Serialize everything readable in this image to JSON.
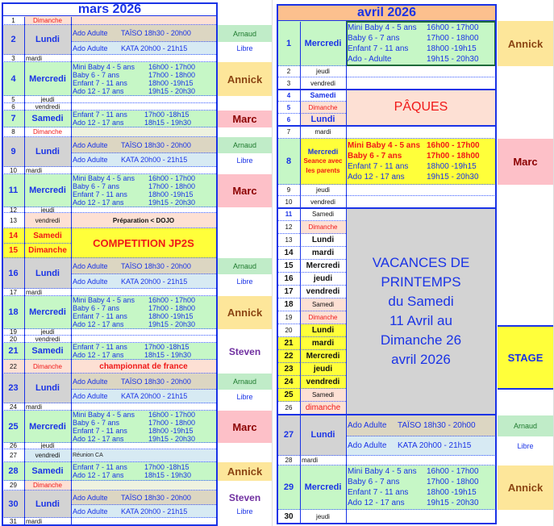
{
  "colors": {
    "schedule_text": "#1a33e6",
    "sunday": "#f01818",
    "lundi_bg": "#d3d3d3",
    "taiso_bg": "#dcd6c2",
    "kata_bg": "#d7eaf3",
    "session_bg": "#c6f7c6",
    "holiday_bg": "#fde0d4",
    "highlight": "#ffff3a",
    "avril_header": "#fcc08e"
  },
  "mars": {
    "title": "mars 2026",
    "rows": [
      {
        "num": "1",
        "day": "Dimanche"
      },
      {
        "num": "2",
        "day": "Lundi",
        "lines": [
          [
            "Ado Adulte",
            "TAÏSO 18h30 - 20h00"
          ],
          [
            "Ado Adulte",
            "KATA  20h00 - 21h15"
          ]
        ]
      },
      {
        "num": "3",
        "day": "mardi"
      },
      {
        "num": "4",
        "day": "Mercredi",
        "lines": [
          [
            "Mini Baby 4 - 5 ans",
            "16h00 - 17h00"
          ],
          [
            "Baby     6 - 7 ans",
            "17h00 - 18h00"
          ],
          [
            "Enfant  7 - 11 ans",
            "18h00 -19h15"
          ],
          [
            "Ado  12  -  17 ans",
            "19h15 - 20h30"
          ]
        ]
      },
      {
        "num": "5",
        "day": "jeudi"
      },
      {
        "num": "6",
        "day": "vendredi"
      },
      {
        "num": "7",
        "day": "Samedi",
        "lines": [
          [
            "Enfant 7 - 11 ans",
            "17h00 -18h15"
          ],
          [
            "Ado  12 - 17 ans",
            "18h15 - 19h30"
          ]
        ]
      },
      {
        "num": "8",
        "day": "Dimanche"
      },
      {
        "num": "9",
        "day": "Lundi",
        "lines": [
          [
            "Ado Adulte",
            "TAÏSO 18h30 - 20h00"
          ],
          [
            "Ado Adulte",
            "KATA  20h00 - 21h15"
          ]
        ]
      },
      {
        "num": "10",
        "day": "mardi"
      },
      {
        "num": "11",
        "day": "Mercredi",
        "lines": [
          [
            "Mini Baby 4 - 5 ans",
            "16h00 - 17h00"
          ],
          [
            "Baby     6 - 7 ans",
            "17h00 - 18h00"
          ],
          [
            "Enfant  7 - 11 ans",
            "18h00 -19h15"
          ],
          [
            "Ado  12  -  17 ans",
            "19h15 - 20h30"
          ]
        ]
      },
      {
        "num": "12",
        "day": "jeudi"
      },
      {
        "num": "13",
        "day": "vendredi",
        "note": "Préparation < DOJO"
      },
      {
        "num": "14",
        "day": "Samedi",
        "note": "COMPETITION JP2S"
      },
      {
        "num": "15",
        "day": "Dimanche"
      },
      {
        "num": "16",
        "day": "Lundi",
        "lines": [
          [
            "Ado Adulte",
            "TAÏSO 18h30 - 20h00"
          ],
          [
            "Ado Adulte",
            "KATA  20h00 - 21h15"
          ]
        ]
      },
      {
        "num": "17",
        "day": "mardi"
      },
      {
        "num": "18",
        "day": "Mercredi",
        "lines": [
          [
            "Mini Baby 4 - 5 ans",
            "16h00 - 17h00"
          ],
          [
            "Baby     6 - 7 ans",
            "17h00 - 18h00"
          ],
          [
            "Enfant  7 - 11 ans",
            "18h00 -19h15"
          ],
          [
            "Ado  12  -  17 ans",
            "19h15 - 20h30"
          ]
        ]
      },
      {
        "num": "19",
        "day": "jeudi"
      },
      {
        "num": "20",
        "day": "vendredi"
      },
      {
        "num": "21",
        "day": "Samedi",
        "lines": [
          [
            "Enfant 7 - 11 ans",
            "17h00 -18h15"
          ],
          [
            "Ado  12 - 17 ans",
            "18h15 - 19h30"
          ]
        ]
      },
      {
        "num": "22",
        "day": "Dimanche",
        "note": "championnat de france"
      },
      {
        "num": "23",
        "day": "Lundi",
        "lines": [
          [
            "Ado Adulte",
            "TAÏSO 18h30 - 20h00"
          ],
          [
            "Ado Adulte",
            "KATA  20h00 - 21h15"
          ]
        ]
      },
      {
        "num": "24",
        "day": "mardi"
      },
      {
        "num": "25",
        "day": "Mercredi",
        "lines": [
          [
            "Mini Baby 4 - 5 ans",
            "16h00 - 17h00"
          ],
          [
            "Baby     6 - 7 ans",
            "17h00 - 18h00"
          ],
          [
            "Enfant  7 - 11 ans",
            "18h00 -19h15"
          ],
          [
            "Ado  12  -  17 ans",
            "19h15 - 20h30"
          ]
        ]
      },
      {
        "num": "26",
        "day": "jeudi"
      },
      {
        "num": "27",
        "day": "vendredi",
        "note": "Réunion CA"
      },
      {
        "num": "28",
        "day": "Samedi",
        "lines": [
          [
            "Enfant 7 - 11 ans",
            "17h00 -18h15"
          ],
          [
            "Ado  12 - 17 ans",
            "18h15 - 19h30"
          ]
        ]
      },
      {
        "num": "29",
        "day": "Dimanche"
      },
      {
        "num": "30",
        "day": "Lundi",
        "lines": [
          [
            "Ado Adulte",
            "TAÏSO 18h30 - 20h00"
          ],
          [
            "Ado Adulte",
            "KATA  20h00 - 21h15"
          ]
        ]
      },
      {
        "num": "31",
        "day": "mardi"
      }
    ],
    "instructors": [
      "Arnaud",
      "Libre",
      "Annick",
      "Marc",
      "Arnaud",
      "Libre",
      "Marc",
      "Arnaud",
      "Libre",
      "Annick",
      "Steven",
      "Arnaud",
      "Libre",
      "Marc",
      "Annick",
      "Steven",
      "Libre"
    ]
  },
  "avril": {
    "title": "avril 2026",
    "rows": [
      {
        "num": "1",
        "day": "Mercredi",
        "lines": [
          [
            "Mini Baby 4 - 5 ans",
            "16h00 - 17h00"
          ],
          [
            "Baby     6 - 7 ans",
            "17h00 - 18h00"
          ],
          [
            "Enfant  7 - 11 ans",
            "18h00 -19h15"
          ],
          [
            "Ado - Adulte",
            "19h15 - 20h30"
          ]
        ]
      },
      {
        "num": "2",
        "day": "jeudi"
      },
      {
        "num": "3",
        "day": "vendredi"
      },
      {
        "num": "4",
        "day": "Samedi",
        "note": "PÂQUES"
      },
      {
        "num": "5",
        "day": "Dimanche"
      },
      {
        "num": "6",
        "day": "Lundi"
      },
      {
        "num": "7",
        "day": "mardi"
      },
      {
        "num": "8",
        "day": "Mercredi",
        "day_note": [
          "Seance avec",
          "les parents"
        ],
        "lines": [
          [
            "Mini Baby 4 - 5 ans",
            "16h00 - 17h00"
          ],
          [
            "Baby     6 - 7 ans",
            "17h00 - 18h00"
          ],
          [
            "Enfant  7 - 11 ans",
            "18h00 -19h15"
          ],
          [
            "Ado  12  -  17 ans",
            "19h15 - 20h30"
          ]
        ]
      },
      {
        "num": "9",
        "day": "jeudi"
      },
      {
        "num": "10",
        "day": "vendredi"
      },
      {
        "num": "11",
        "day": "Samedi",
        "note": [
          "VACANCES DE",
          "PRINTEMPS",
          "du Samedi",
          "11 Avril au",
          "Dimanche 26",
          "avril 2026"
        ]
      },
      {
        "num": "12",
        "day": "Dimanche"
      },
      {
        "num": "13",
        "day": "Lundi"
      },
      {
        "num": "14",
        "day": "mardi"
      },
      {
        "num": "15",
        "day": "Mercredi"
      },
      {
        "num": "16",
        "day": "jeudi"
      },
      {
        "num": "17",
        "day": "vendredi"
      },
      {
        "num": "18",
        "day": "Samedi"
      },
      {
        "num": "19",
        "day": "Dimanche"
      },
      {
        "num": "20",
        "day": "Lundi"
      },
      {
        "num": "21",
        "day": "mardi"
      },
      {
        "num": "22",
        "day": "Mercredi"
      },
      {
        "num": "23",
        "day": "jeudi"
      },
      {
        "num": "24",
        "day": "vendredi"
      },
      {
        "num": "25",
        "day": "Samedi"
      },
      {
        "num": "26",
        "day": "dimanche"
      },
      {
        "num": "27",
        "day": "Lundi",
        "lines": [
          [
            "Ado Adulte",
            "TAÏSO 18h30 - 20h00"
          ],
          [
            "Ado Adulte",
            "KATA  20h00 - 21h15"
          ]
        ]
      },
      {
        "num": "28",
        "day": "mardi"
      },
      {
        "num": "29",
        "day": "Mercredi",
        "lines": [
          [
            "Mini Baby 4 - 5 ans",
            "16h00 - 17h00"
          ],
          [
            "Baby     6 - 7 ans",
            "17h00 - 18h00"
          ],
          [
            "Enfant  7 - 11 ans",
            "18h00 -19h15"
          ],
          [
            "Ado  12  -  17 ans",
            "19h15 - 20h30"
          ]
        ]
      },
      {
        "num": "30",
        "day": "jeudi"
      }
    ],
    "instructors": [
      "Annick",
      "Marc",
      "STAGE",
      "Arnaud",
      "Libre",
      "Annick"
    ]
  }
}
